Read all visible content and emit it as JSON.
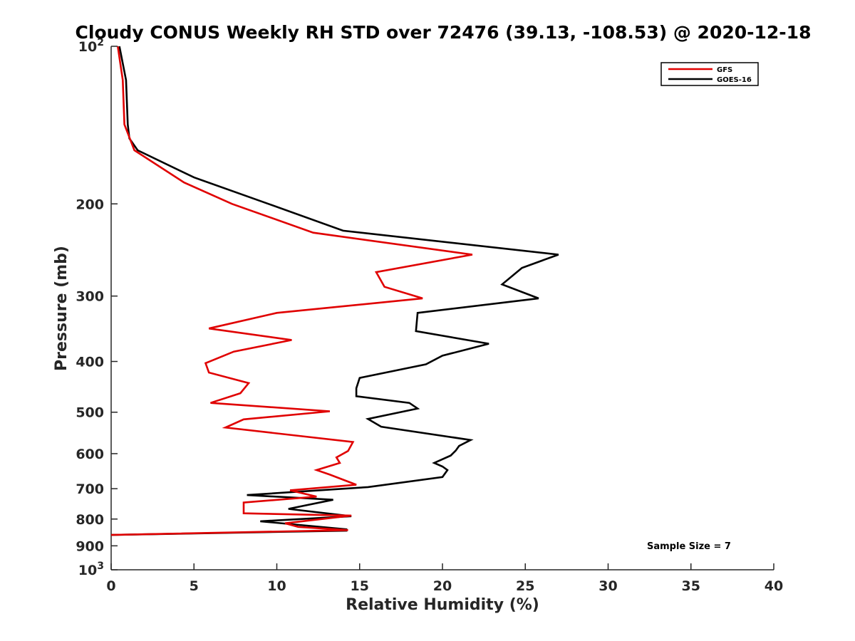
{
  "chart_data": {
    "type": "line",
    "title": "Cloudy CONUS Weekly RH STD over 72476 (39.13, -108.53) @ 2020-12-18",
    "xlabel": "Relative Humidity (%)",
    "ylabel": "Pressure (mb)",
    "xlim": [
      0,
      40
    ],
    "ylim": [
      100,
      1000
    ],
    "y_scale": "log",
    "y_reversed": true,
    "grid": false,
    "legend_position": "top-right",
    "annotation": "Sample Size = 7",
    "x_ticks": [
      "0",
      "5",
      "10",
      "15",
      "20",
      "25",
      "30",
      "35",
      "40"
    ],
    "y_ticks": [
      {
        "value": 100,
        "base": "10",
        "exp": "2"
      },
      {
        "value": 200,
        "label": "200"
      },
      {
        "value": 300,
        "label": "300"
      },
      {
        "value": 400,
        "label": "400"
      },
      {
        "value": 500,
        "label": "500"
      },
      {
        "value": 600,
        "label": "600"
      },
      {
        "value": 700,
        "label": "700"
      },
      {
        "value": 800,
        "label": "800"
      },
      {
        "value": 900,
        "label": "900"
      },
      {
        "value": 1000,
        "base": "10",
        "exp": "3"
      }
    ],
    "series": [
      {
        "name": "GFS",
        "color": "#e00000",
        "points": [
          [
            0.4,
            100
          ],
          [
            0.7,
            116
          ],
          [
            0.8,
            141
          ],
          [
            1.4,
            158
          ],
          [
            4.4,
            182
          ],
          [
            7.3,
            200
          ],
          [
            12.2,
            227
          ],
          [
            21.8,
            250
          ],
          [
            16.0,
            270
          ],
          [
            16.5,
            288
          ],
          [
            18.8,
            303
          ],
          [
            10.0,
            323
          ],
          [
            5.9,
            346
          ],
          [
            10.9,
            364
          ],
          [
            7.4,
            383
          ],
          [
            5.7,
            403
          ],
          [
            5.9,
            420
          ],
          [
            8.3,
            440
          ],
          [
            7.8,
            460
          ],
          [
            6.0,
            480
          ],
          [
            13.2,
            498
          ],
          [
            8.0,
            516
          ],
          [
            6.9,
            535
          ],
          [
            14.6,
            570
          ],
          [
            14.3,
            593
          ],
          [
            13.6,
            610
          ],
          [
            13.8,
            625
          ],
          [
            12.4,
            645
          ],
          [
            13.2,
            658
          ],
          [
            14.8,
            688
          ],
          [
            10.8,
            705
          ],
          [
            12.4,
            725
          ],
          [
            8.0,
            744
          ],
          [
            8.0,
            756
          ],
          [
            8.0,
            780
          ],
          [
            14.5,
            788
          ],
          [
            10.5,
            815
          ],
          [
            11.3,
            828
          ],
          [
            14.3,
            840
          ],
          [
            0,
            858
          ]
        ]
      },
      {
        "name": "GOES-16",
        "color": "#000000",
        "points": [
          [
            0.5,
            100
          ],
          [
            0.9,
            116
          ],
          [
            1.0,
            141
          ],
          [
            1.1,
            150
          ],
          [
            1.6,
            158
          ],
          [
            5.0,
            178
          ],
          [
            9.5,
            200
          ],
          [
            14.0,
            225
          ],
          [
            27.0,
            250
          ],
          [
            24.8,
            265
          ],
          [
            23.6,
            285
          ],
          [
            25.8,
            303
          ],
          [
            18.5,
            323
          ],
          [
            18.4,
            350
          ],
          [
            22.8,
            370
          ],
          [
            20.0,
            390
          ],
          [
            19.0,
            405
          ],
          [
            15.0,
            430
          ],
          [
            14.8,
            450
          ],
          [
            14.8,
            466
          ],
          [
            18.0,
            480
          ],
          [
            18.5,
            492
          ],
          [
            15.5,
            515
          ],
          [
            16.3,
            533
          ],
          [
            21.7,
            565
          ],
          [
            21.0,
            580
          ],
          [
            20.8,
            592
          ],
          [
            20.5,
            605
          ],
          [
            19.5,
            625
          ],
          [
            20.0,
            635
          ],
          [
            20.3,
            645
          ],
          [
            20.0,
            665
          ],
          [
            15.5,
            695
          ],
          [
            8.2,
            720
          ],
          [
            13.4,
            735
          ],
          [
            10.7,
            765
          ],
          [
            14.5,
            790
          ],
          [
            9.0,
            808
          ],
          [
            14.2,
            837
          ],
          [
            14.2,
            842
          ],
          [
            0,
            858
          ]
        ]
      }
    ]
  }
}
